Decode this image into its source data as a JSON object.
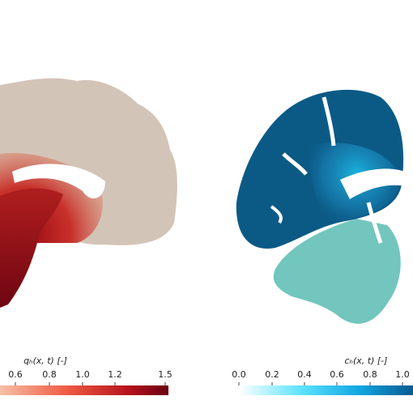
{
  "panels": [
    {
      "colorbar": {
        "title": "qₕ(x, t) [-]",
        "ticks": [
          "0.6",
          "0.8",
          "1.0",
          "1.2",
          "1.5"
        ]
      }
    },
    {
      "colorbar": {
        "title": "cₕ(x, t) [-]",
        "ticks": [
          "0.0",
          "0.2",
          "0.4",
          "0.6",
          "0.8",
          "1.0"
        ]
      }
    }
  ]
}
